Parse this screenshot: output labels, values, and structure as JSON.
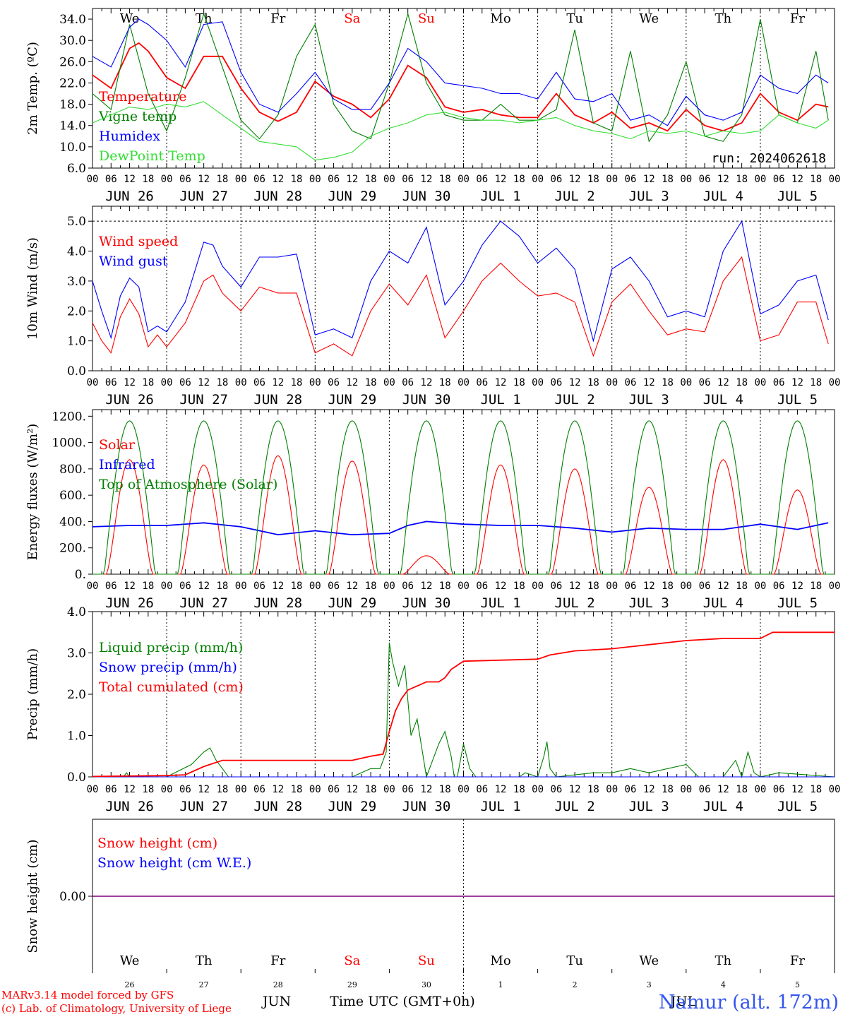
{
  "colors": {
    "red": "#ff0000",
    "green": "#008000",
    "blue": "#0000ff",
    "lightgreen": "#33dd33",
    "purple": "#7f007f",
    "black": "#000000"
  },
  "days": [
    {
      "dow": "We",
      "date": "JUN 26",
      "num": "26",
      "weekend": false
    },
    {
      "dow": "Th",
      "date": "JUN 27",
      "num": "27",
      "weekend": false
    },
    {
      "dow": "Fr",
      "date": "JUN 28",
      "num": "28",
      "weekend": false
    },
    {
      "dow": "Sa",
      "date": "JUN 29",
      "num": "29",
      "weekend": true
    },
    {
      "dow": "Su",
      "date": "JUN 30",
      "num": "30",
      "weekend": true
    },
    {
      "dow": "Mo",
      "date": "JUL  1",
      "num": "1",
      "weekend": false
    },
    {
      "dow": "Tu",
      "date": "JUL  2",
      "num": "2",
      "weekend": false
    },
    {
      "dow": "We",
      "date": "JUL  3",
      "num": "3",
      "weekend": false
    },
    {
      "dow": "Th",
      "date": "JUL  4",
      "num": "4",
      "weekend": false
    },
    {
      "dow": "Fr",
      "date": "JUL  5",
      "num": "5",
      "weekend": false
    }
  ],
  "hour_ticks": [
    "00",
    "06",
    "12",
    "18"
  ],
  "footer": {
    "model": "MARv3.14 model forced by GFS",
    "lab": "(c) Lab. of Climatology, University of Liege",
    "month_jun": "JUN",
    "month_jul": "JUL",
    "time_label": "Time UTC (GMT+0h)",
    "station": "Namur (alt. 172m)"
  },
  "chart_data": [
    {
      "id": "temp",
      "type": "line",
      "ylabel": "2m Temp. (ºC)",
      "ylim": [
        6,
        36
      ],
      "yticks": [
        "6.0",
        "10.0",
        "14.0",
        "18.0",
        "22.0",
        "26.0",
        "30.0",
        "34.0"
      ],
      "run_label": "run: 2024062618",
      "x_unit": "hours since JUN 26 00 UTC",
      "series": [
        {
          "name": "Temperature",
          "color": "#ff0000",
          "x": [
            0,
            6,
            12,
            15,
            18,
            24,
            30,
            36,
            42,
            48,
            54,
            60,
            66,
            72,
            78,
            84,
            90,
            96,
            102,
            108,
            114,
            120,
            126,
            132,
            138,
            144,
            150,
            156,
            162,
            168,
            174,
            180,
            186,
            192,
            198,
            204,
            210,
            216,
            222,
            228,
            234,
            238
          ],
          "values": [
            23.5,
            21,
            28.5,
            29.5,
            28,
            23,
            21,
            27,
            27,
            21,
            16.5,
            14.8,
            16.5,
            22.3,
            19.5,
            18,
            15.5,
            19,
            25.3,
            23,
            17.5,
            16.5,
            17,
            16,
            15.5,
            15.5,
            20,
            16,
            14.5,
            16.5,
            13.5,
            14.5,
            13,
            17,
            14,
            13,
            14.5,
            20,
            16.5,
            15,
            18,
            17.5
          ]
        },
        {
          "name": "Vigne temp",
          "color": "#008000",
          "x": [
            0,
            6,
            12,
            18,
            24,
            30,
            36,
            42,
            48,
            54,
            60,
            66,
            72,
            78,
            84,
            90,
            96,
            102,
            108,
            114,
            120,
            126,
            132,
            138,
            144,
            150,
            156,
            162,
            168,
            174,
            180,
            186,
            192,
            198,
            204,
            210,
            216,
            222,
            228,
            234,
            238
          ],
          "values": [
            20,
            17,
            33,
            20,
            13,
            23,
            35,
            25,
            15,
            11.5,
            16,
            27,
            33,
            18,
            13,
            11.5,
            22,
            35,
            22,
            16,
            15,
            15,
            18,
            15,
            15,
            17,
            32,
            14.5,
            13,
            28,
            11,
            16,
            26,
            12,
            11,
            16,
            34,
            16,
            14.5,
            28,
            15
          ]
        },
        {
          "name": "Humidex",
          "color": "#0000ff",
          "x": [
            0,
            6,
            12,
            15,
            18,
            24,
            30,
            36,
            42,
            48,
            54,
            60,
            66,
            72,
            78,
            84,
            90,
            96,
            102,
            108,
            114,
            120,
            126,
            132,
            138,
            144,
            150,
            156,
            162,
            168,
            174,
            180,
            186,
            192,
            198,
            204,
            210,
            216,
            222,
            228,
            234,
            238
          ],
          "values": [
            27,
            25,
            32.5,
            34,
            33,
            30,
            25,
            33,
            33.5,
            24,
            18,
            16.5,
            20,
            24,
            19,
            17,
            17,
            22,
            28.5,
            26,
            22,
            21.5,
            21,
            20,
            20,
            19,
            24,
            19,
            18.5,
            20,
            15,
            16,
            14,
            19.5,
            16,
            15,
            16.5,
            23.5,
            21,
            20,
            23.5,
            22
          ]
        },
        {
          "name": "DewPoint Temp",
          "color": "#33dd33",
          "x": [
            0,
            6,
            12,
            18,
            24,
            30,
            36,
            42,
            48,
            54,
            60,
            66,
            72,
            78,
            84,
            90,
            96,
            102,
            108,
            114,
            120,
            126,
            132,
            138,
            144,
            150,
            156,
            162,
            168,
            174,
            180,
            186,
            192,
            198,
            204,
            210,
            216,
            222,
            228,
            234,
            238
          ],
          "values": [
            14.5,
            16,
            17.5,
            17,
            18,
            17.5,
            18.5,
            16,
            13.5,
            11,
            10.5,
            10,
            7.5,
            8,
            9,
            12,
            13.5,
            14.5,
            16,
            16.5,
            15.5,
            15,
            15,
            14.5,
            15,
            15.5,
            14,
            13,
            12.5,
            11.5,
            13,
            12.5,
            13,
            12,
            13,
            12.5,
            13,
            16,
            14.5,
            13.5,
            15
          ]
        }
      ]
    },
    {
      "id": "wind",
      "type": "line",
      "ylabel": "10m Wind (m/s)",
      "ylim": [
        0,
        5.5
      ],
      "yticks": [
        "0.0",
        "1.0",
        "2.0",
        "3.0",
        "4.0",
        "5.0"
      ],
      "ref_line": 5.0,
      "series": [
        {
          "name": "Wind speed",
          "color": "#ff0000",
          "x": [
            0,
            3,
            6,
            9,
            12,
            15,
            18,
            21,
            24,
            30,
            36,
            39,
            42,
            48,
            54,
            60,
            66,
            72,
            78,
            84,
            90,
            96,
            102,
            108,
            114,
            120,
            126,
            132,
            138,
            144,
            150,
            156,
            162,
            168,
            174,
            180,
            186,
            192,
            198,
            204,
            210,
            216,
            222,
            228,
            234,
            238
          ],
          "values": [
            1.6,
            1.0,
            0.6,
            1.8,
            2.4,
            1.9,
            0.8,
            1.2,
            0.8,
            1.6,
            3.0,
            3.2,
            2.6,
            2.0,
            2.8,
            2.6,
            2.6,
            0.6,
            0.9,
            0.5,
            2.0,
            2.9,
            2.2,
            3.2,
            1.1,
            2.0,
            3.0,
            3.6,
            3.0,
            2.5,
            2.6,
            2.3,
            0.5,
            2.3,
            2.9,
            2.0,
            1.2,
            1.4,
            1.3,
            3.0,
            3.8,
            1.0,
            1.2,
            2.3,
            2.3,
            0.9
          ]
        },
        {
          "name": "Wind gust",
          "color": "#0000ff",
          "x": [
            0,
            3,
            6,
            9,
            12,
            15,
            18,
            21,
            24,
            30,
            36,
            39,
            42,
            48,
            54,
            60,
            66,
            72,
            78,
            84,
            90,
            96,
            102,
            108,
            114,
            120,
            126,
            132,
            138,
            144,
            150,
            156,
            162,
            168,
            174,
            180,
            186,
            192,
            198,
            204,
            210,
            216,
            222,
            228,
            234,
            238
          ],
          "values": [
            3.0,
            2.0,
            1.1,
            2.5,
            3.1,
            2.8,
            1.3,
            1.5,
            1.3,
            2.3,
            4.3,
            4.2,
            3.5,
            2.8,
            3.8,
            3.8,
            3.9,
            1.2,
            1.4,
            1.1,
            3.0,
            4.0,
            3.6,
            4.8,
            2.2,
            3.0,
            4.2,
            5.0,
            4.5,
            3.6,
            4.1,
            3.4,
            1.0,
            3.4,
            3.8,
            3.0,
            1.8,
            2.0,
            1.8,
            4.0,
            5.0,
            1.9,
            2.2,
            3.0,
            3.2,
            1.7
          ]
        }
      ]
    },
    {
      "id": "energy",
      "type": "line",
      "ylabel": "Energy fluxes (W/m²)",
      "ylim": [
        0,
        1250
      ],
      "yticks": [
        "0.",
        "200.",
        "400.",
        "600.",
        "800.",
        "1000.",
        "1200."
      ],
      "series": [
        {
          "name": "Solar",
          "color": "#ff0000",
          "day_peaks": [
            870,
            830,
            900,
            860,
            140,
            830,
            800,
            660,
            870,
            640
          ]
        },
        {
          "name": "Infrared",
          "color": "#0000ff",
          "x": [
            0,
            12,
            24,
            36,
            48,
            60,
            72,
            84,
            96,
            102,
            108,
            120,
            132,
            144,
            156,
            168,
            180,
            192,
            204,
            216,
            228,
            238
          ],
          "values": [
            360,
            370,
            370,
            390,
            360,
            300,
            330,
            300,
            310,
            370,
            400,
            380,
            370,
            370,
            350,
            320,
            350,
            340,
            340,
            380,
            340,
            390
          ]
        },
        {
          "name": "Top of Atmosphere (Solar)",
          "color": "#008000",
          "peak": 1165
        }
      ]
    },
    {
      "id": "precip",
      "type": "line",
      "ylabel": "Precip (mm/h)",
      "ylim": [
        0,
        4
      ],
      "yticks": [
        "0.0",
        "1.0",
        "2.0",
        "3.0",
        "4.0"
      ],
      "series": [
        {
          "name": "Liquid precip (mm/h)",
          "color": "#008000",
          "x": [
            0,
            10,
            11,
            12,
            24,
            32,
            36,
            38,
            40,
            44,
            48,
            84,
            90,
            93,
            95,
            96,
            97,
            99,
            101,
            103,
            105,
            108,
            112,
            114,
            116,
            117,
            118,
            120,
            122,
            124,
            138,
            140,
            144,
            146,
            147,
            148,
            150,
            162,
            168,
            174,
            180,
            192,
            196,
            204,
            206,
            208,
            210,
            212,
            214,
            216,
            222,
            240
          ],
          "values": [
            0,
            0,
            0.1,
            0,
            0,
            0.3,
            0.6,
            0.7,
            0.4,
            0,
            0,
            0,
            0.2,
            0.2,
            0.6,
            3.25,
            2.8,
            2.2,
            2.7,
            1.0,
            1.4,
            0,
            0.8,
            1.1,
            0.5,
            0,
            0,
            0.8,
            0.2,
            0,
            0,
            0.1,
            0,
            0.5,
            0.85,
            0.2,
            0,
            0.1,
            0.1,
            0.2,
            0.1,
            0.3,
            0,
            0,
            0.2,
            0.4,
            0,
            0.6,
            0.1,
            0,
            0.1,
            0
          ]
        },
        {
          "name": "Snow precip (mm/h)",
          "color": "#0000ff",
          "x": [
            0,
            240
          ],
          "values": [
            0,
            0
          ]
        },
        {
          "name": "Total cumulated (cm)",
          "color": "#ff0000",
          "x": [
            0,
            24,
            30,
            36,
            42,
            48,
            84,
            90,
            94,
            96,
            98,
            100,
            102,
            108,
            112,
            114,
            116,
            120,
            144,
            148,
            156,
            168,
            180,
            192,
            204,
            216,
            220,
            240
          ],
          "values": [
            0.01,
            0.03,
            0.05,
            0.25,
            0.4,
            0.4,
            0.4,
            0.5,
            0.55,
            1.1,
            1.6,
            1.9,
            2.1,
            2.3,
            2.3,
            2.4,
            2.6,
            2.8,
            2.85,
            2.95,
            3.05,
            3.1,
            3.2,
            3.3,
            3.35,
            3.35,
            3.5,
            3.5
          ]
        }
      ]
    },
    {
      "id": "snow",
      "type": "line",
      "ylabel": "Snow height (cm)",
      "ylim": [
        -1,
        1
      ],
      "yticks": [
        "0.00"
      ],
      "series": [
        {
          "name": "Snow height (cm)",
          "color": "#ff0000",
          "x": [
            0,
            240
          ],
          "values": [
            0,
            0
          ]
        },
        {
          "name": "Snow height (cm W.E.)",
          "color": "#0000ff",
          "x": [
            0,
            240
          ],
          "values": [
            0,
            0
          ]
        }
      ]
    }
  ]
}
